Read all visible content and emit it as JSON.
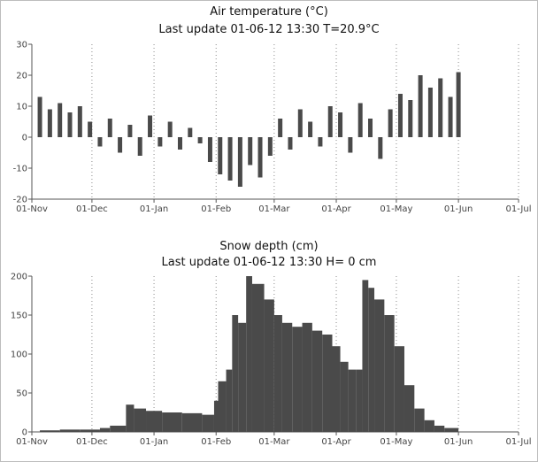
{
  "colors": {
    "bars": "#4a4a4a",
    "axis": "#555555",
    "grid": "#8a8a8a",
    "text": "#444444"
  },
  "chart_data": [
    {
      "type": "bar",
      "title": "Air temperature (°C)",
      "subtitle": "Last update 01-06-12 13:30 T=20.9°C",
      "xlabel": "",
      "ylabel": "",
      "xlim": [
        "01-Nov",
        "01-Jul"
      ],
      "ylim": [
        -20,
        30
      ],
      "yticks": [
        -20,
        -10,
        0,
        10,
        20,
        30
      ],
      "xticks": [
        "01-Nov",
        "01-Dec",
        "01-Jan",
        "01-Feb",
        "01-Mar",
        "01-Apr",
        "01-May",
        "01-Jun",
        "01-Jul"
      ],
      "grid": "vertical dotted at month starts",
      "legend": "none",
      "series": [
        {
          "x": [
            "2011-11-05",
            "2011-11-10",
            "2011-11-15",
            "2011-11-20",
            "2011-11-25",
            "2011-11-30",
            "2011-12-05",
            "2011-12-10",
            "2011-12-15",
            "2011-12-20",
            "2011-12-25",
            "2011-12-30",
            "2012-01-04",
            "2012-01-09",
            "2012-01-14",
            "2012-01-19",
            "2012-01-24",
            "2012-01-29",
            "2012-02-03",
            "2012-02-08",
            "2012-02-13",
            "2012-02-18",
            "2012-02-23",
            "2012-02-28",
            "2012-03-04",
            "2012-03-09",
            "2012-03-14",
            "2012-03-19",
            "2012-03-24",
            "2012-03-29",
            "2012-04-03",
            "2012-04-08",
            "2012-04-13",
            "2012-04-18",
            "2012-04-23",
            "2012-04-28",
            "2012-05-03",
            "2012-05-08",
            "2012-05-13",
            "2012-05-18",
            "2012-05-23",
            "2012-05-28",
            "2012-06-01"
          ],
          "values": [
            13,
            9,
            11,
            8,
            10,
            5,
            -3,
            6,
            -5,
            4,
            -6,
            7,
            -3,
            5,
            -4,
            3,
            -2,
            -8,
            -12,
            -14,
            -16,
            -9,
            -13,
            -6,
            6,
            -4,
            9,
            5,
            -3,
            10,
            8,
            -5,
            11,
            6,
            -7,
            9,
            14,
            12,
            20,
            16,
            19,
            13,
            21
          ]
        }
      ]
    },
    {
      "type": "area",
      "title": "Snow depth (cm)",
      "subtitle": "Last update 01-06-12 13:30 H= 0 cm",
      "xlabel": "",
      "ylabel": "",
      "xlim": [
        "01-Nov",
        "01-Jul"
      ],
      "ylim": [
        0,
        200
      ],
      "yticks": [
        0,
        50,
        100,
        150,
        200
      ],
      "xticks": [
        "01-Nov",
        "01-Dec",
        "01-Jan",
        "01-Feb",
        "01-Mar",
        "01-Apr",
        "01-May",
        "01-Jun",
        "01-Jul"
      ],
      "grid": "vertical dotted at month starts",
      "legend": "none",
      "series": [
        {
          "x": [
            "2011-11-05",
            "2011-11-15",
            "2011-11-25",
            "2011-12-05",
            "2011-12-10",
            "2011-12-18",
            "2011-12-22",
            "2011-12-28",
            "2012-01-05",
            "2012-01-15",
            "2012-01-25",
            "2012-01-31",
            "2012-02-02",
            "2012-02-06",
            "2012-02-09",
            "2012-02-12",
            "2012-02-16",
            "2012-02-19",
            "2012-02-25",
            "2012-03-01",
            "2012-03-05",
            "2012-03-10",
            "2012-03-15",
            "2012-03-20",
            "2012-03-25",
            "2012-03-30",
            "2012-04-03",
            "2012-04-07",
            "2012-04-11",
            "2012-04-14",
            "2012-04-17",
            "2012-04-20",
            "2012-04-25",
            "2012-04-30",
            "2012-05-05",
            "2012-05-10",
            "2012-05-15",
            "2012-05-20",
            "2012-05-25",
            "2012-06-01"
          ],
          "values": [
            2,
            3,
            3,
            5,
            8,
            35,
            30,
            27,
            25,
            24,
            22,
            40,
            65,
            80,
            150,
            140,
            200,
            190,
            170,
            150,
            140,
            135,
            140,
            130,
            125,
            110,
            90,
            80,
            80,
            195,
            185,
            170,
            150,
            110,
            60,
            30,
            15,
            8,
            5,
            0
          ]
        }
      ]
    }
  ]
}
